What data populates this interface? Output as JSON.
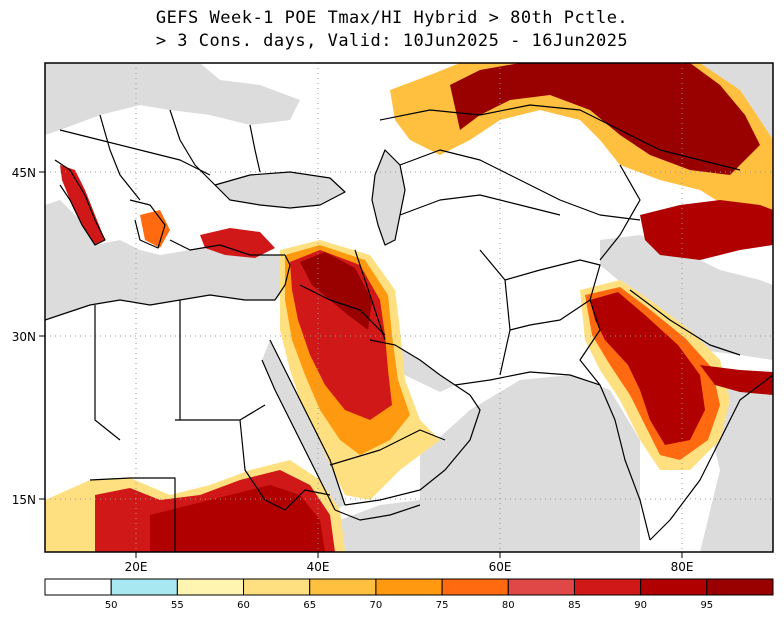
{
  "title": {
    "line1": "GEFS Week-1 POE Tmax/HI Hybrid > 80th Pctle.",
    "line2": "> 3 Cons. days, Valid: 10Jun2025 - 16Jun2025"
  },
  "axes": {
    "lat_labels": [
      "45N",
      "30N",
      "15N"
    ],
    "lon_labels": [
      "20E",
      "40E",
      "60E",
      "80E"
    ],
    "lon_range": [
      9,
      89
    ],
    "lat_range": [
      10,
      55
    ]
  },
  "colorbar": {
    "ticks": [
      "50",
      "55",
      "60",
      "65",
      "70",
      "75",
      "80",
      "85",
      "90",
      "95"
    ],
    "colors": [
      "#ffffff",
      "#a8e8f0",
      "#fff5b0",
      "#ffe080",
      "#ffc040",
      "#ff9a10",
      "#ff6a10",
      "#e04848",
      "#d01818",
      "#b00000",
      "#990000"
    ]
  },
  "colors": {
    "land": "#ffffff",
    "ocean_nodata": "#dcdcdc",
    "border": "#000000",
    "grid": "#999999"
  }
}
